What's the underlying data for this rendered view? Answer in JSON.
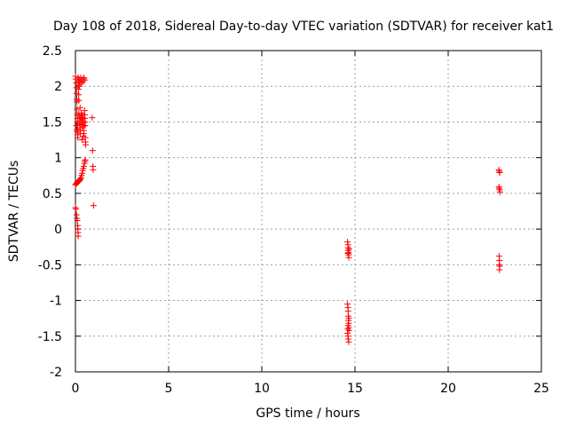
{
  "chart_data": {
    "type": "scatter",
    "title": "Day 108 of 2018, Sidereal Day-to-day VTEC variation (SDTVAR) for receiver kat1",
    "xlabel": "GPS time / hours",
    "ylabel": "SDTVAR / TECUs",
    "xlim": [
      0,
      25
    ],
    "ylim": [
      -2,
      2.5
    ],
    "xticks": [
      0,
      5,
      10,
      15,
      20,
      25
    ],
    "yticks": [
      -2,
      -1.5,
      -1,
      -0.5,
      0,
      0.5,
      1,
      1.5,
      2,
      2.5
    ],
    "xtick_labels": [
      "0",
      "5",
      "10",
      "15",
      "20",
      "25"
    ],
    "ytick_labels": [
      "-2",
      "-1.5",
      "-1",
      "-0.5",
      "0",
      "0.5",
      "1",
      "1.5",
      "2",
      "2.5"
    ],
    "grid": true,
    "marker": "+",
    "color": "#ff0000",
    "series": [
      {
        "name": "SDTVAR",
        "points": [
          [
            0.0,
            2.14
          ],
          [
            0.02,
            2.1
          ],
          [
            0.04,
            2.05
          ],
          [
            0.05,
            1.98
          ],
          [
            0.06,
            1.9
          ],
          [
            0.07,
            1.82
          ],
          [
            0.08,
            1.78
          ],
          [
            0.08,
            1.68
          ],
          [
            0.09,
            1.6
          ],
          [
            0.1,
            1.55
          ],
          [
            0.1,
            1.5
          ],
          [
            0.11,
            1.45
          ],
          [
            0.11,
            1.4
          ],
          [
            0.12,
            1.36
          ],
          [
            0.12,
            1.32
          ],
          [
            0.13,
            1.28
          ],
          [
            0.14,
            2.12
          ],
          [
            0.15,
            2.08
          ],
          [
            0.15,
            2.02
          ],
          [
            0.16,
            1.96
          ],
          [
            0.17,
            1.88
          ],
          [
            0.18,
            1.8
          ],
          [
            0.19,
            2.1
          ],
          [
            0.2,
            2.06
          ],
          [
            0.21,
            2.0
          ],
          [
            0.22,
            1.58
          ],
          [
            0.23,
            1.52
          ],
          [
            0.24,
            1.47
          ],
          [
            0.25,
            1.42
          ],
          [
            0.26,
            1.38
          ],
          [
            0.27,
            1.34
          ],
          [
            0.28,
            2.12
          ],
          [
            0.29,
            2.08
          ],
          [
            0.3,
            2.04
          ],
          [
            0.31,
            1.62
          ],
          [
            0.32,
            1.58
          ],
          [
            0.33,
            1.54
          ],
          [
            0.34,
            1.5
          ],
          [
            0.35,
            1.46
          ],
          [
            0.36,
            1.42
          ],
          [
            0.37,
            2.1
          ],
          [
            0.38,
            2.06
          ],
          [
            0.39,
            1.6
          ],
          [
            0.4,
            1.56
          ],
          [
            0.41,
            1.52
          ],
          [
            0.42,
            1.48
          ],
          [
            0.43,
            1.44
          ],
          [
            0.44,
            1.38
          ],
          [
            0.45,
            1.34
          ],
          [
            0.46,
            2.12
          ],
          [
            0.47,
            2.1
          ],
          [
            0.48,
            2.08
          ],
          [
            0.49,
            1.66
          ],
          [
            0.5,
            1.6
          ],
          [
            0.5,
            1.55
          ],
          [
            0.51,
            1.5
          ],
          [
            0.52,
            1.45
          ],
          [
            0.53,
            1.28
          ],
          [
            0.54,
            1.22
          ],
          [
            0.55,
            1.18
          ],
          [
            0.35,
            1.25
          ],
          [
            0.25,
            1.7
          ],
          [
            0.18,
            1.62
          ],
          [
            0.05,
            1.45
          ],
          [
            0.08,
            1.38
          ],
          [
            0.12,
            1.48
          ],
          [
            0.28,
            1.56
          ],
          [
            0.42,
            1.3
          ],
          [
            0.0,
            0.62
          ],
          [
            0.03,
            0.63
          ],
          [
            0.06,
            0.64
          ],
          [
            0.09,
            0.65
          ],
          [
            0.12,
            0.66
          ],
          [
            0.15,
            0.66
          ],
          [
            0.18,
            0.67
          ],
          [
            0.21,
            0.68
          ],
          [
            0.24,
            0.69
          ],
          [
            0.27,
            0.7
          ],
          [
            0.3,
            0.72
          ],
          [
            0.33,
            0.75
          ],
          [
            0.36,
            0.78
          ],
          [
            0.39,
            0.82
          ],
          [
            0.42,
            0.85
          ],
          [
            0.45,
            0.88
          ],
          [
            0.48,
            0.92
          ],
          [
            0.5,
            0.95
          ],
          [
            0.53,
            0.97
          ],
          [
            0.0,
            0.3
          ],
          [
            0.03,
            0.28
          ],
          [
            0.06,
            0.2
          ],
          [
            0.08,
            0.15
          ],
          [
            0.1,
            0.12
          ],
          [
            0.12,
            0.05
          ],
          [
            0.13,
            0.0
          ],
          [
            0.14,
            -0.05
          ],
          [
            0.15,
            -0.1
          ],
          [
            0.9,
            1.56
          ],
          [
            0.92,
            1.1
          ],
          [
            0.94,
            0.88
          ],
          [
            0.95,
            0.83
          ],
          [
            0.97,
            0.33
          ],
          [
            14.6,
            -0.18
          ],
          [
            14.62,
            -0.22
          ],
          [
            14.63,
            -0.26
          ],
          [
            14.64,
            -0.3
          ],
          [
            14.65,
            -0.33
          ],
          [
            14.66,
            -0.36
          ],
          [
            14.67,
            -0.4
          ],
          [
            14.62,
            -0.34
          ],
          [
            14.68,
            -0.28
          ],
          [
            14.6,
            -1.05
          ],
          [
            14.62,
            -1.1
          ],
          [
            14.63,
            -1.15
          ],
          [
            14.64,
            -1.22
          ],
          [
            14.65,
            -1.28
          ],
          [
            14.66,
            -1.32
          ],
          [
            14.67,
            -1.38
          ],
          [
            14.68,
            -1.42
          ],
          [
            14.6,
            -1.46
          ],
          [
            14.62,
            -1.5
          ],
          [
            14.64,
            -1.54
          ],
          [
            14.66,
            -1.58
          ],
          [
            14.63,
            -1.35
          ],
          [
            14.61,
            -1.4
          ],
          [
            14.67,
            -1.25
          ],
          [
            22.72,
            0.83
          ],
          [
            22.74,
            0.81
          ],
          [
            22.76,
            0.79
          ],
          [
            22.72,
            0.59
          ],
          [
            22.74,
            0.57
          ],
          [
            22.76,
            0.55
          ],
          [
            22.78,
            0.52
          ],
          [
            22.73,
            -0.38
          ],
          [
            22.75,
            -0.44
          ],
          [
            22.74,
            -0.5
          ],
          [
            22.76,
            -0.52
          ],
          [
            22.75,
            -0.57
          ]
        ]
      }
    ]
  }
}
